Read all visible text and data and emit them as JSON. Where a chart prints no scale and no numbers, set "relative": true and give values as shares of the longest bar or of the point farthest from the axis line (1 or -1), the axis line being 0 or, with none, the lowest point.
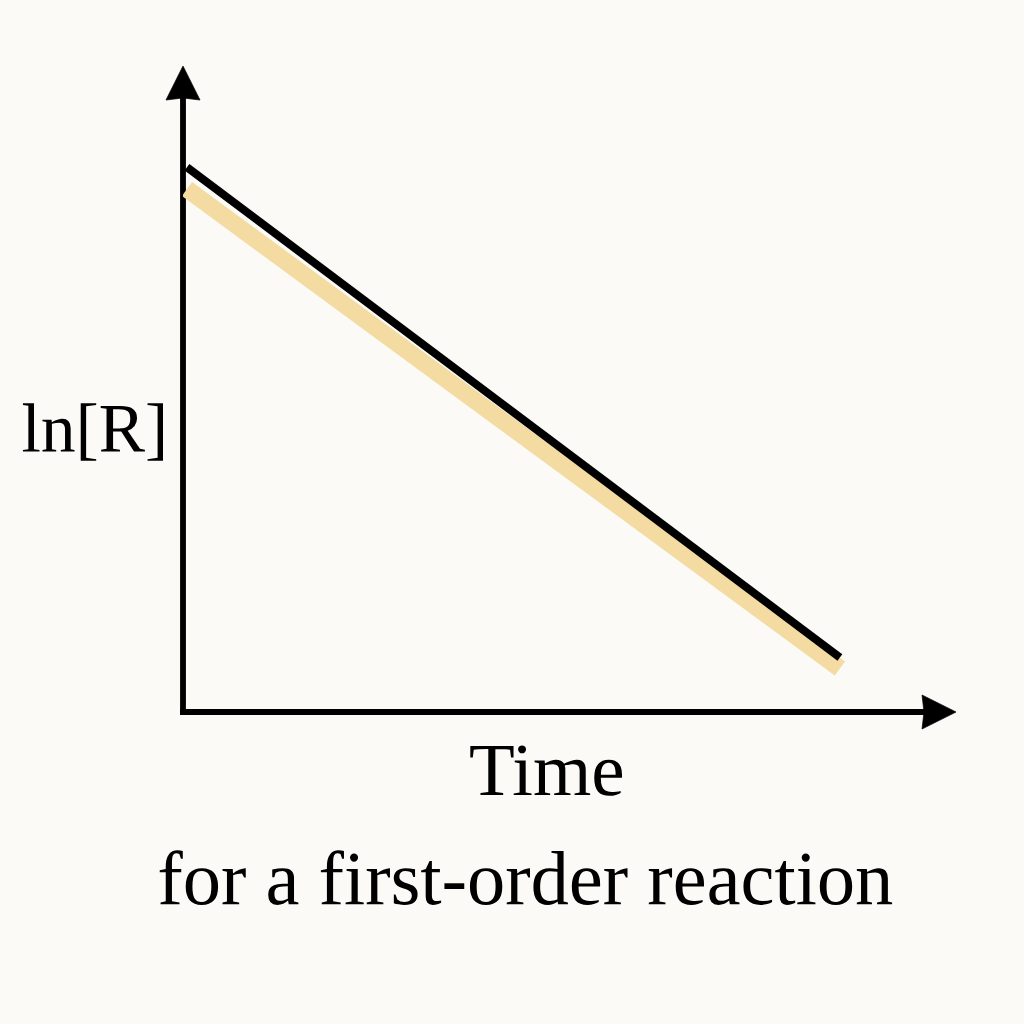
{
  "chart_data": {
    "type": "line",
    "relative": true,
    "xlabel": "Time",
    "ylabel": "ln[R]",
    "annotations": [
      "for a first-order reaction"
    ],
    "categories": [
      null,
      null
    ],
    "series": [
      {
        "color": "#f3dba2",
        "values": [
          0.96,
          0.08
        ]
      },
      {
        "color": "#000000",
        "values": [
          1,
          0.1
        ]
      }
    ],
    "ref_lines": [
      {
        "axis": "y",
        "value": 0,
        "color": "#000000"
      }
    ]
  }
}
